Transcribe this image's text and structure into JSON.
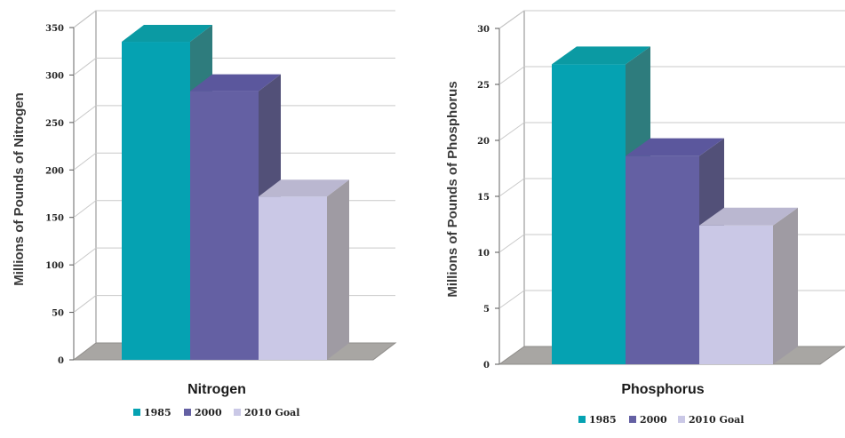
{
  "chart_data": [
    {
      "type": "bar",
      "categories": [
        "Nitrogen"
      ],
      "series": [
        {
          "name": "1985",
          "values": [
            335
          ],
          "color": "#05a2b2",
          "side": "#2e7c7d",
          "top": "#0b9aa3"
        },
        {
          "name": "2000",
          "values": [
            283
          ],
          "color": "#6460a3",
          "side": "#525078",
          "top": "#5b579d"
        },
        {
          "name": "2010 Goal",
          "values": [
            172
          ],
          "color": "#cac8e6",
          "side": "#9f9ba3",
          "top": "#bab7d0"
        }
      ],
      "xlabel": "Nitrogen",
      "ylabel": "Millions of Pounds of Nitrogen",
      "ylim": [
        0,
        350
      ],
      "yticks": [
        "0",
        "50",
        "100",
        "150",
        "200",
        "250",
        "300",
        "350"
      ],
      "ytick_values": [
        0,
        50,
        100,
        150,
        200,
        250,
        300,
        350
      ],
      "grid": true,
      "legend": "bottom"
    },
    {
      "type": "bar",
      "categories": [
        "Phosphorus"
      ],
      "series": [
        {
          "name": "1985",
          "values": [
            26.8
          ],
          "color": "#05a2b2",
          "side": "#2e7c7d",
          "top": "#0b9aa3"
        },
        {
          "name": "2000",
          "values": [
            18.6
          ],
          "color": "#6460a3",
          "side": "#525078",
          "top": "#5b579d"
        },
        {
          "name": "2010 Goal",
          "values": [
            12.4
          ],
          "color": "#cac8e6",
          "side": "#9f9ba3",
          "top": "#bab7d0"
        }
      ],
      "xlabel": "Phosphorus",
      "ylabel": "Millions of Pounds of Phosphorus",
      "ylim": [
        0,
        30
      ],
      "yticks": [
        "0",
        "5",
        "10",
        "15",
        "20",
        "25",
        "30"
      ],
      "ytick_values": [
        0,
        5,
        10,
        15,
        20,
        25,
        30
      ],
      "grid": true,
      "legend": "bottom"
    }
  ]
}
